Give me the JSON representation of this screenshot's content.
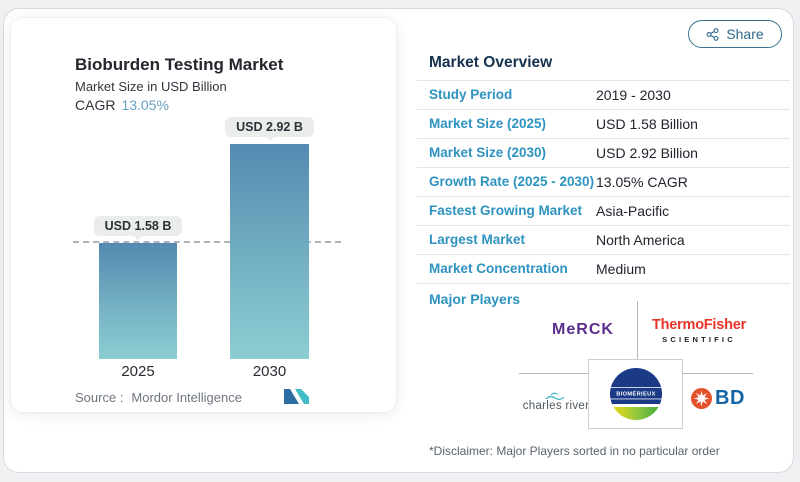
{
  "share_button": {
    "label": "Share"
  },
  "chart_card": {
    "title": "Bioburden Testing Market",
    "subtitle": "Market Size in USD Billion",
    "cagr_label": "CAGR",
    "cagr_value": "13.05%",
    "source_label": "Source :",
    "source_name": "Mordor Intelligence"
  },
  "chart_data": {
    "type": "bar",
    "title": "Bioburden Testing Market",
    "ylabel": "Market Size in USD Billion",
    "categories": [
      "2025",
      "2030"
    ],
    "values": [
      1.58,
      2.92
    ],
    "value_labels": [
      "USD 1.58 B",
      "USD 2.92 B"
    ],
    "unit": "USD Billion",
    "cagr_percent": 13.05,
    "ylim": [
      0,
      2.92
    ],
    "baseline_dashed_at_value": 1.58,
    "legend": "none",
    "grid": "off",
    "bar_color_top": "#538ab1",
    "bar_color_bottom": "#8ccdd2"
  },
  "market_overview": {
    "title": "Market Overview",
    "rows": [
      {
        "label": "Study Period",
        "value": "2019 - 2030"
      },
      {
        "label": "Market Size (2025)",
        "value": "USD 1.58 Billion"
      },
      {
        "label": "Market Size (2030)",
        "value": "USD 2.92 Billion"
      },
      {
        "label": "Growth Rate (2025 - 2030)",
        "value": "13.05% CAGR"
      },
      {
        "label": "Fastest Growing Market",
        "value": "Asia-Pacific"
      },
      {
        "label": "Largest Market",
        "value": "North America"
      },
      {
        "label": "Market Concentration",
        "value": "Medium"
      }
    ],
    "major_players_label": "Major Players",
    "players": {
      "merck": "MeRCK",
      "thermo_fisher_line1": "Thermo Fisher",
      "thermo_fisher_line2": "SCIENTIFIC",
      "charles_river": "charles river",
      "biomerieux": "BIOMÉRIEUX",
      "bd": "BD"
    },
    "disclaimer": "*Disclaimer: Major Players sorted in no particular order"
  },
  "colors": {
    "accent_label": "#2e93c0",
    "value_text": "#20242e",
    "header_text": "#14324e",
    "cagr_value": "#68a2c4",
    "share_outline": "#2e6a8c",
    "merck_purple": "#5b2d8e",
    "thermo_red": "#e8352a",
    "bd_blue": "#1464a5",
    "bd_orange": "#e4512b",
    "biomerieux_navy": "#1a3a85"
  }
}
